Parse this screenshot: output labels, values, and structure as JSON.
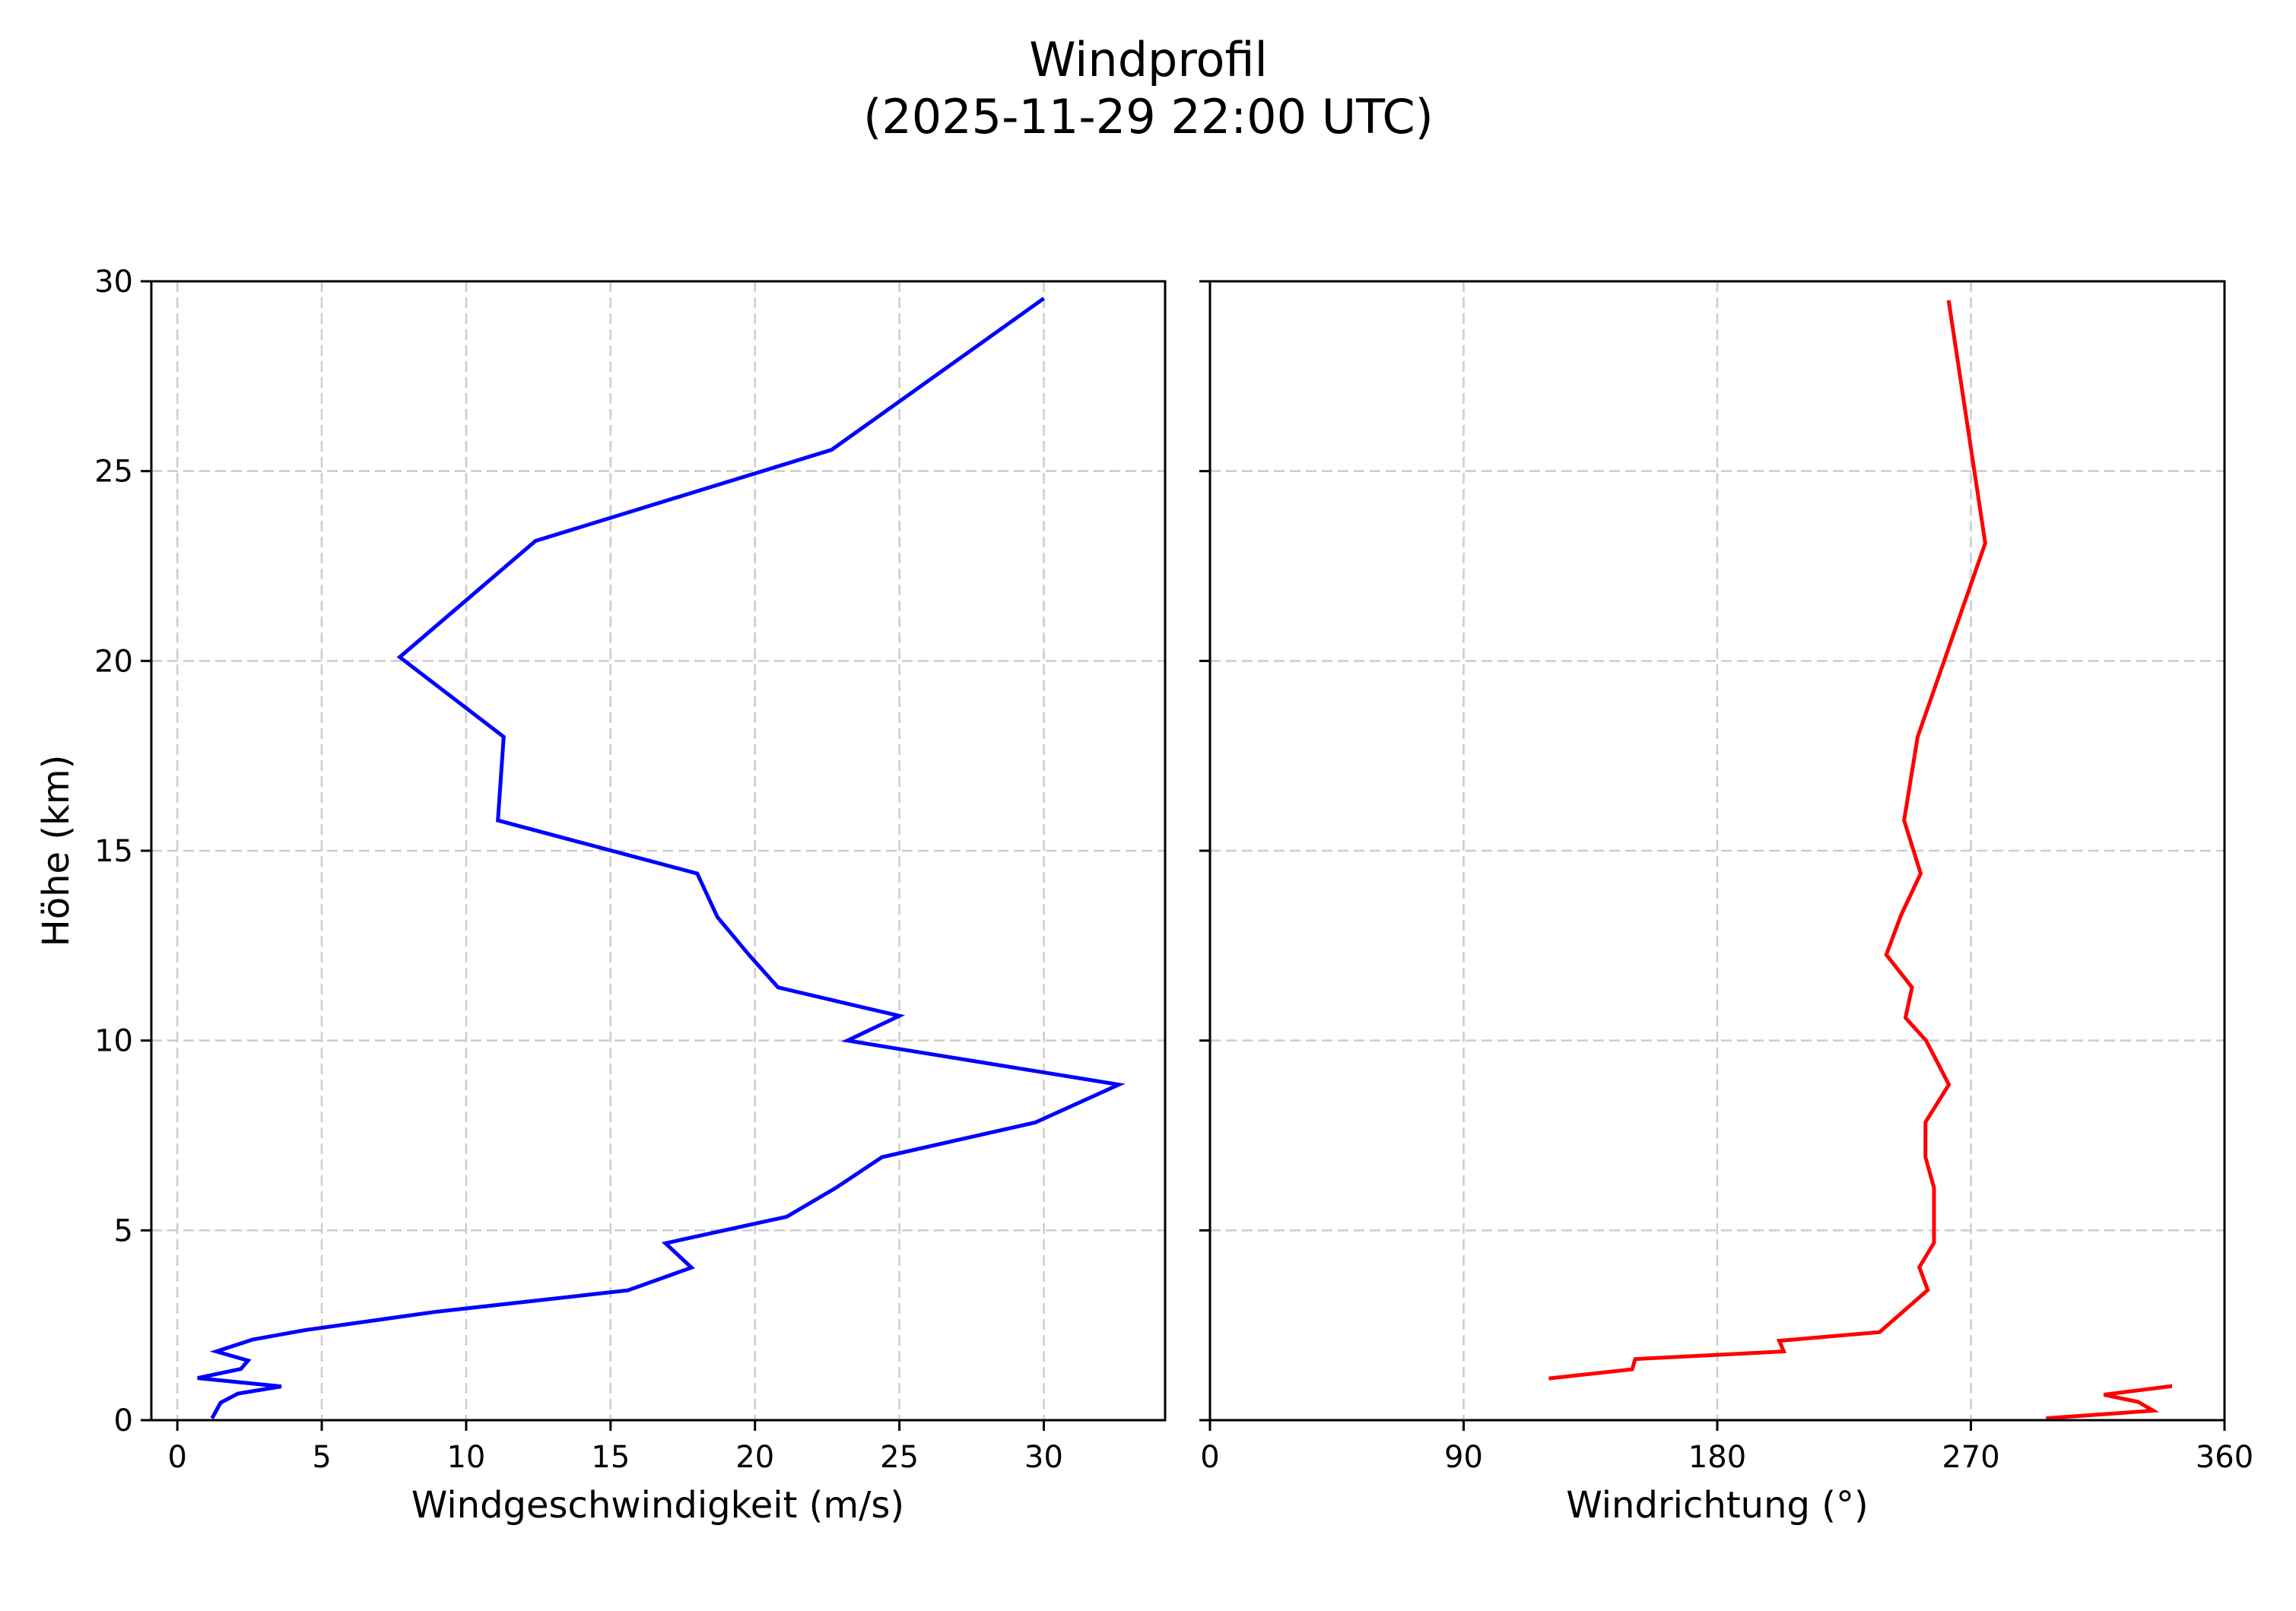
{
  "figure": {
    "title_line1": "Windprofil",
    "title_line2": "(2025-11-29 22:00 UTC)"
  },
  "colors": {
    "speed_line": "#0000ff",
    "direction_line": "#ff0000",
    "grid": "#cccccc",
    "axes": "#000000"
  },
  "chart_data": [
    {
      "type": "line",
      "title": "Windprofil (2025-11-29 22:00 UTC)",
      "xlabel": "Windgeschwindigkeit (m/s)",
      "ylabel": "Höhe (km)",
      "xlim": [
        -0.9,
        34.2
      ],
      "ylim": [
        0,
        30
      ],
      "xticks": [
        0,
        5,
        10,
        15,
        20,
        25,
        30
      ],
      "yticks": [
        0,
        5,
        10,
        15,
        20,
        25,
        30
      ],
      "grid": true,
      "grid_style": "dashed",
      "series": [
        {
          "name": "Windgeschwindigkeit",
          "color": "#0000ff",
          "points": [
            {
              "x": 1.2,
              "y": 0.05
            },
            {
              "x": 1.5,
              "y": 0.46
            },
            {
              "x": 2.1,
              "y": 0.7
            },
            {
              "x": 3.6,
              "y": 0.89
            },
            {
              "x": 0.7,
              "y": 1.11
            },
            {
              "x": 2.2,
              "y": 1.35
            },
            {
              "x": 2.45,
              "y": 1.57
            },
            {
              "x": 1.35,
              "y": 1.81
            },
            {
              "x": 2.6,
              "y": 2.12
            },
            {
              "x": 4.4,
              "y": 2.37
            },
            {
              "x": 8.9,
              "y": 2.85
            },
            {
              "x": 15.6,
              "y": 3.42
            },
            {
              "x": 17.8,
              "y": 4.02
            },
            {
              "x": 16.9,
              "y": 4.66
            },
            {
              "x": 21.1,
              "y": 5.36
            },
            {
              "x": 22.8,
              "y": 6.12
            },
            {
              "x": 24.4,
              "y": 6.93
            },
            {
              "x": 29.7,
              "y": 7.84
            },
            {
              "x": 32.6,
              "y": 8.84
            },
            {
              "x": 23.2,
              "y": 10.0
            },
            {
              "x": 25.0,
              "y": 10.65
            },
            {
              "x": 20.8,
              "y": 11.4
            },
            {
              "x": 19.8,
              "y": 12.25
            },
            {
              "x": 18.7,
              "y": 13.25
            },
            {
              "x": 18.0,
              "y": 14.4
            },
            {
              "x": 11.1,
              "y": 15.8
            },
            {
              "x": 11.3,
              "y": 18.0
            },
            {
              "x": 7.7,
              "y": 20.1
            },
            {
              "x": 12.4,
              "y": 23.16
            },
            {
              "x": 22.65,
              "y": 25.56
            },
            {
              "x": 30.0,
              "y": 29.55
            }
          ]
        }
      ]
    },
    {
      "type": "line",
      "xlabel": "Windrichtung (°)",
      "ylabel": "",
      "xlim": [
        0,
        360
      ],
      "ylim": [
        0,
        30
      ],
      "xticks": [
        0,
        90,
        180,
        270,
        360
      ],
      "yticks": [
        0,
        5,
        10,
        15,
        20,
        25,
        30
      ],
      "ytick_labels_visible": false,
      "grid": true,
      "grid_style": "dashed",
      "series": [
        {
          "name": "Windrichtung",
          "color": "#ff0000",
          "segments": [
            [
              {
                "x": 296.7,
                "y": 0.05
              },
              {
                "x": 334.7,
                "y": 0.25
              },
              {
                "x": 329.4,
                "y": 0.48
              },
              {
                "x": 317.2,
                "y": 0.67
              },
              {
                "x": 341.4,
                "y": 0.9
              }
            ],
            [
              {
                "x": 120.2,
                "y": 1.1
              },
              {
                "x": 149.8,
                "y": 1.34
              },
              {
                "x": 150.9,
                "y": 1.61
              },
              {
                "x": 203.6,
                "y": 1.81
              },
              {
                "x": 202.0,
                "y": 2.09
              },
              {
                "x": 237.6,
                "y": 2.32
              },
              {
                "x": 254.7,
                "y": 3.43
              },
              {
                "x": 251.7,
                "y": 4.03
              },
              {
                "x": 256.9,
                "y": 4.67
              },
              {
                "x": 256.9,
                "y": 6.12
              },
              {
                "x": 253.9,
                "y": 6.93
              },
              {
                "x": 253.9,
                "y": 7.85
              },
              {
                "x": 262.2,
                "y": 8.84
              },
              {
                "x": 254.1,
                "y": 10.0
              },
              {
                "x": 246.8,
                "y": 10.6
              },
              {
                "x": 249.1,
                "y": 11.4
              },
              {
                "x": 240.0,
                "y": 12.26
              },
              {
                "x": 245.2,
                "y": 13.3
              },
              {
                "x": 252.2,
                "y": 14.4
              },
              {
                "x": 246.3,
                "y": 15.8
              },
              {
                "x": 251.1,
                "y": 18.0
              },
              {
                "x": 275.1,
                "y": 23.1
              },
              {
                "x": 262.1,
                "y": 29.5
              }
            ]
          ]
        }
      ]
    }
  ]
}
